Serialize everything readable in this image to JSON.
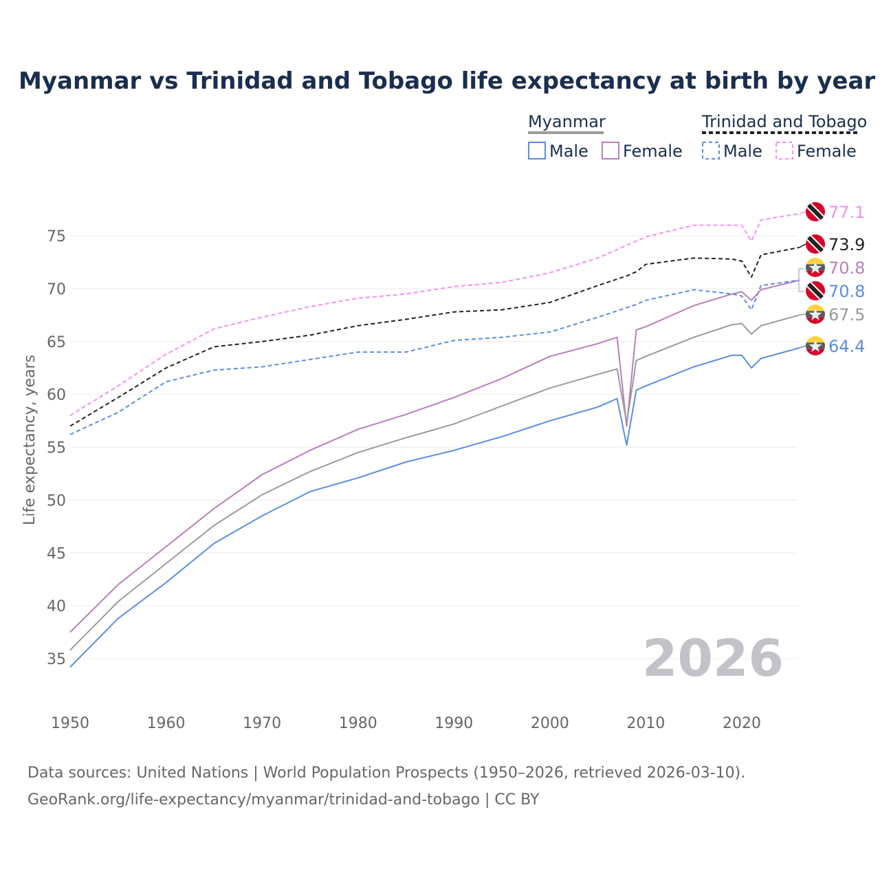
{
  "chart_data": {
    "type": "line",
    "title": "Myanmar vs Trinidad and Tobago life expectancy at birth by year",
    "xlabel": "",
    "ylabel": "Life expectancy, years",
    "xlim": [
      1950,
      2026
    ],
    "ylim": [
      33,
      78
    ],
    "x_ticks": [
      "1950",
      "1960",
      "1970",
      "1980",
      "1990",
      "2000",
      "2010",
      "2020"
    ],
    "y_ticks": [
      "35",
      "40",
      "45",
      "50",
      "55",
      "60",
      "65",
      "70",
      "75"
    ],
    "grid": true,
    "year_watermark": "2026",
    "legend": {
      "placement": "top-right",
      "groups": [
        {
          "name": "Myanmar",
          "items": [
            "Male",
            "Female"
          ]
        },
        {
          "name": "Trinidad and Tobago",
          "items": [
            "Male",
            "Female"
          ]
        }
      ]
    },
    "x": [
      1950,
      1955,
      1960,
      1965,
      1970,
      1975,
      1980,
      1985,
      1990,
      1995,
      2000,
      2005,
      2007,
      2008,
      2009,
      2010,
      2015,
      2019,
      2020,
      2021,
      2022,
      2026
    ],
    "series": [
      {
        "name": "Trinidad and Tobago Female",
        "country": "Trinidad and Tobago",
        "color": "#f78ef0",
        "dashed": true,
        "end_label": "77.1",
        "values": [
          58.0,
          60.8,
          63.8,
          66.2,
          67.3,
          68.3,
          69.1,
          69.5,
          70.2,
          70.6,
          71.5,
          72.9,
          73.7,
          74.1,
          74.5,
          74.9,
          76.0,
          76.0,
          76.0,
          74.5,
          76.5,
          77.1
        ]
      },
      {
        "name": "Trinidad and Tobago Total",
        "country": "Trinidad and Tobago",
        "color": "#222222",
        "dashed": true,
        "end_label": "73.9",
        "values": [
          57.0,
          59.7,
          62.5,
          64.5,
          65.0,
          65.6,
          66.5,
          67.1,
          67.8,
          68.0,
          68.7,
          70.3,
          70.9,
          71.2,
          71.6,
          72.3,
          72.9,
          72.8,
          72.6,
          71.1,
          73.2,
          73.9
        ]
      },
      {
        "name": "Myanmar Female",
        "country": "Myanmar",
        "color": "#b87fb8",
        "dashed": false,
        "end_label": "70.8",
        "values": [
          37.5,
          42.0,
          45.6,
          49.2,
          52.4,
          54.7,
          56.7,
          58.1,
          59.7,
          61.5,
          63.6,
          64.8,
          65.4,
          57.0,
          66.1,
          66.4,
          68.4,
          69.5,
          69.7,
          68.9,
          69.9,
          70.8
        ]
      },
      {
        "name": "Trinidad and Tobago Male",
        "country": "Trinidad and Tobago",
        "color": "#5b8de0",
        "dashed": true,
        "end_label": "70.8",
        "values": [
          56.2,
          58.3,
          61.2,
          62.3,
          62.6,
          63.3,
          64.0,
          64.0,
          65.1,
          65.4,
          65.9,
          67.3,
          67.9,
          68.2,
          68.5,
          68.9,
          69.9,
          69.5,
          69.3,
          68.0,
          70.3,
          70.8
        ]
      },
      {
        "name": "Myanmar Total",
        "country": "Myanmar",
        "color": "#9a9a9a",
        "dashed": false,
        "end_label": "67.5",
        "values": [
          35.8,
          40.4,
          44.0,
          47.6,
          50.5,
          52.7,
          54.5,
          55.9,
          57.2,
          58.9,
          60.6,
          61.9,
          62.4,
          57.3,
          63.2,
          63.6,
          65.4,
          66.6,
          66.7,
          65.7,
          66.5,
          67.5
        ]
      },
      {
        "name": "Myanmar Male",
        "country": "Myanmar",
        "color": "#5b8de0",
        "dashed": false,
        "end_label": "64.4",
        "values": [
          34.2,
          38.8,
          42.2,
          45.9,
          48.5,
          50.8,
          52.1,
          53.6,
          54.7,
          56.0,
          57.5,
          58.8,
          59.6,
          55.2,
          60.4,
          60.8,
          62.6,
          63.7,
          63.7,
          62.5,
          63.4,
          64.4
        ]
      }
    ]
  },
  "footer": {
    "line1": "Data sources: United Nations | World Population Prospects (1950–2026, retrieved 2026-03-10).",
    "line2": "GeoRank.org/life-expectancy/myanmar/trinidad-and-tobago | CC BY"
  }
}
